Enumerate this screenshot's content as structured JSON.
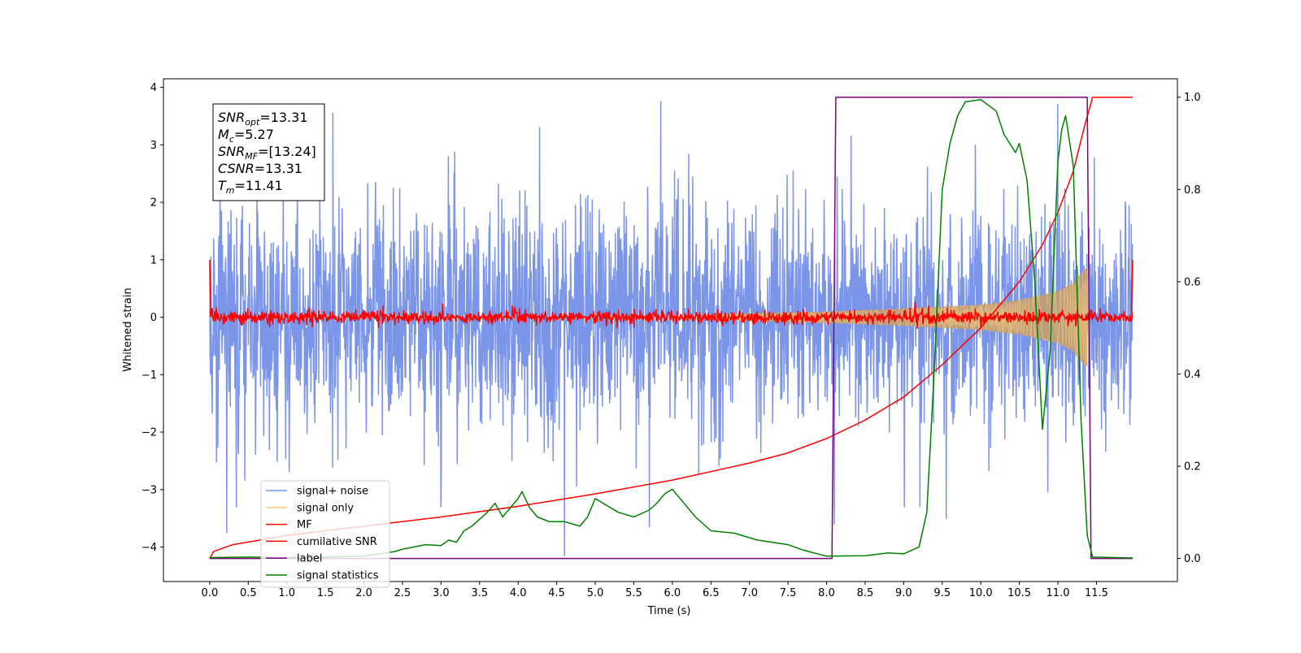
{
  "chart_data": {
    "type": "line",
    "xlabel": "Time (s)",
    "ylabel": "Whitened strain",
    "xlim": [
      -0.6,
      12.55
    ],
    "ylim": [
      -4.6,
      4.15
    ],
    "y2lim": [
      -0.05,
      1.04
    ],
    "x_ticks": [
      "0.0",
      "0.5",
      "1.0",
      "1.5",
      "2.0",
      "2.5",
      "3.0",
      "3.5",
      "4.0",
      "4.5",
      "5.0",
      "5.5",
      "6.0",
      "6.5",
      "7.0",
      "7.5",
      "8.0",
      "8.5",
      "9.0",
      "9.5",
      "10.0",
      "10.5",
      "11.0",
      "11.5"
    ],
    "y_ticks": [
      "4",
      "3",
      "2",
      "1",
      "0",
      "−1",
      "−2",
      "−3",
      "−4"
    ],
    "y2_ticks": [
      "1.0",
      "0.8",
      "0.6",
      "0.4",
      "0.2",
      "0.0"
    ],
    "legend_position": "lower-left",
    "grid": false,
    "annotation": {
      "lines": [
        {
          "name": "SNR",
          "sub": "opt",
          "value": "=13.31"
        },
        {
          "name": "M",
          "sub": "c",
          "value": "=5.27"
        },
        {
          "name": "SNR",
          "sub": "MF",
          "value": "=[13.24]"
        },
        {
          "name": "CSNR",
          "sub": "",
          "value": "=13.31"
        },
        {
          "name": "T",
          "sub": "m",
          "value": "=11.41"
        }
      ]
    },
    "series": [
      {
        "name": "signal+ noise",
        "color": "#7b96e8",
        "axis": "left",
        "description": "noisy whitened strain, std about 1, spanning t=0 to 11.97 s, range about -3.8 to 3.8",
        "notable_spikes": [
          [
            1.6,
            3.55
          ],
          [
            5.85,
            3.75
          ],
          [
            11.0,
            3.7
          ],
          [
            0.22,
            -3.75
          ],
          [
            4.6,
            -4.15
          ],
          [
            5.7,
            -3.65
          ],
          [
            8.1,
            -3.6
          ],
          [
            9.55,
            -3.5
          ]
        ]
      },
      {
        "name": "signal only",
        "color": "#f5c97a",
        "axis": "left",
        "description": "chirp waveform, amplitude grows from ~0.05 at 6.5 s to ~0.85 at 11.35 s, merger at 11.41 s",
        "envelope": [
          [
            6.5,
            0.05
          ],
          [
            8.0,
            0.1
          ],
          [
            9.0,
            0.15
          ],
          [
            10.0,
            0.22
          ],
          [
            10.5,
            0.3
          ],
          [
            11.0,
            0.45
          ],
          [
            11.2,
            0.6
          ],
          [
            11.35,
            0.85
          ]
        ]
      },
      {
        "name": "MF",
        "color": "#ff0000",
        "axis": "left",
        "description": "matched filter output, near 0 with noise ~0.06, spikes to 1.0 at both ends"
      },
      {
        "name": "cumilative SNR",
        "color": "#ff0000",
        "axis": "right",
        "points": [
          [
            0.0,
            0.0
          ],
          [
            0.05,
            0.015
          ],
          [
            0.3,
            0.03
          ],
          [
            1.0,
            0.05
          ],
          [
            2.0,
            0.07
          ],
          [
            3.0,
            0.09
          ],
          [
            4.0,
            0.113
          ],
          [
            5.0,
            0.14
          ],
          [
            6.0,
            0.17
          ],
          [
            7.0,
            0.207
          ],
          [
            7.5,
            0.229
          ],
          [
            8.0,
            0.26
          ],
          [
            8.5,
            0.3
          ],
          [
            9.0,
            0.35
          ],
          [
            9.5,
            0.42
          ],
          [
            10.0,
            0.5
          ],
          [
            10.5,
            0.6
          ],
          [
            10.8,
            0.68
          ],
          [
            11.0,
            0.75
          ],
          [
            11.2,
            0.84
          ],
          [
            11.35,
            0.94
          ],
          [
            11.45,
            1.0
          ],
          [
            11.97,
            1.0
          ]
        ]
      },
      {
        "name": "label",
        "color": "#800080",
        "axis": "right",
        "points": [
          [
            0.0,
            0.0
          ],
          [
            8.07,
            0.0
          ],
          [
            8.12,
            1.0
          ],
          [
            11.38,
            1.0
          ],
          [
            11.43,
            0.0
          ],
          [
            11.97,
            0.0
          ]
        ]
      },
      {
        "name": "signal statistics",
        "color": "#008000",
        "axis": "right",
        "points": [
          [
            0.0,
            0.002
          ],
          [
            0.5,
            0.003
          ],
          [
            1.0,
            0.002
          ],
          [
            1.5,
            0.003
          ],
          [
            2.0,
            0.005
          ],
          [
            2.2,
            0.01
          ],
          [
            2.4,
            0.015
          ],
          [
            2.5,
            0.02
          ],
          [
            2.8,
            0.03
          ],
          [
            3.0,
            0.028
          ],
          [
            3.1,
            0.04
          ],
          [
            3.2,
            0.035
          ],
          [
            3.3,
            0.06
          ],
          [
            3.4,
            0.07
          ],
          [
            3.5,
            0.085
          ],
          [
            3.6,
            0.1
          ],
          [
            3.7,
            0.12
          ],
          [
            3.8,
            0.09
          ],
          [
            3.9,
            0.11
          ],
          [
            4.0,
            0.13
          ],
          [
            4.05,
            0.145
          ],
          [
            4.15,
            0.11
          ],
          [
            4.25,
            0.09
          ],
          [
            4.4,
            0.08
          ],
          [
            4.6,
            0.08
          ],
          [
            4.8,
            0.07
          ],
          [
            4.9,
            0.09
          ],
          [
            5.0,
            0.13
          ],
          [
            5.1,
            0.12
          ],
          [
            5.3,
            0.1
          ],
          [
            5.5,
            0.09
          ],
          [
            5.7,
            0.105
          ],
          [
            5.8,
            0.12
          ],
          [
            5.9,
            0.14
          ],
          [
            6.0,
            0.15
          ],
          [
            6.1,
            0.13
          ],
          [
            6.3,
            0.09
          ],
          [
            6.5,
            0.06
          ],
          [
            6.8,
            0.055
          ],
          [
            7.1,
            0.04
          ],
          [
            7.3,
            0.035
          ],
          [
            7.5,
            0.03
          ],
          [
            7.7,
            0.018
          ],
          [
            8.0,
            0.005
          ],
          [
            8.5,
            0.006
          ],
          [
            8.8,
            0.012
          ],
          [
            9.0,
            0.01
          ],
          [
            9.2,
            0.025
          ],
          [
            9.3,
            0.1
          ],
          [
            9.4,
            0.42
          ],
          [
            9.5,
            0.8
          ],
          [
            9.6,
            0.9
          ],
          [
            9.7,
            0.96
          ],
          [
            9.8,
            0.99
          ],
          [
            10.0,
            0.995
          ],
          [
            10.2,
            0.97
          ],
          [
            10.3,
            0.92
          ],
          [
            10.45,
            0.88
          ],
          [
            10.5,
            0.9
          ],
          [
            10.6,
            0.82
          ],
          [
            10.7,
            0.6
          ],
          [
            10.8,
            0.28
          ],
          [
            10.9,
            0.45
          ],
          [
            11.0,
            0.86
          ],
          [
            11.05,
            0.93
          ],
          [
            11.1,
            0.96
          ],
          [
            11.2,
            0.85
          ],
          [
            11.3,
            0.3
          ],
          [
            11.38,
            0.05
          ],
          [
            11.45,
            0.003
          ],
          [
            11.97,
            0.001
          ]
        ]
      }
    ]
  }
}
